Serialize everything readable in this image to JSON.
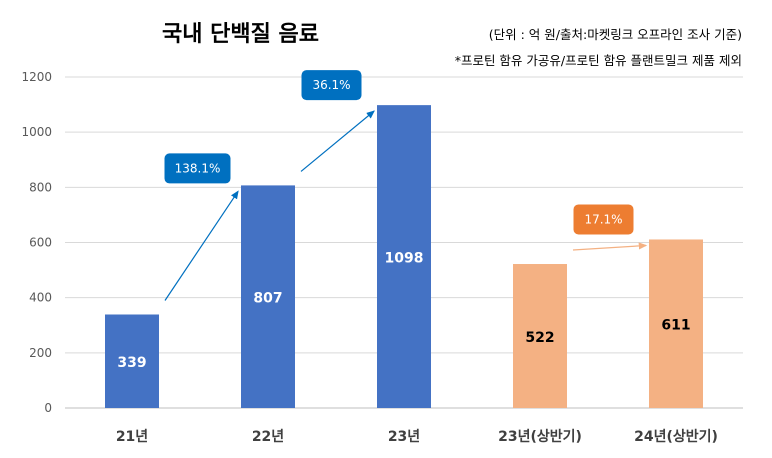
{
  "chart_data": {
    "type": "bar",
    "title": "국내 단백질 음료",
    "notes": [
      "(단위 : 억 원/출처:마켓링크 오프라인 조사 기준)",
      "*프로틴 함유 가공유/프로틴 함유 플랜트밀크 제품 제외"
    ],
    "categories": [
      "21년",
      "22년",
      "23년",
      "23년(상반기)",
      "24년(상반기)"
    ],
    "values": [
      339,
      807,
      1098,
      522,
      611
    ],
    "bar_colors": [
      "#4472C4",
      "#4472C4",
      "#4472C4",
      "#F4B183",
      "#F4B183"
    ],
    "label_colors": [
      "#ffffff",
      "#ffffff",
      "#ffffff",
      "#000000",
      "#000000"
    ],
    "ylim": [
      0,
      1200
    ],
    "yticks": [
      0,
      200,
      400,
      600,
      800,
      1000,
      1200
    ],
    "grid": true,
    "growth_annotations": [
      {
        "from": "21년",
        "to": "22년",
        "label": "138.1%",
        "color": "#0070C0"
      },
      {
        "from": "22년",
        "to": "23년",
        "label": "36.1%",
        "color": "#0070C0"
      },
      {
        "from": "23년(상반기)",
        "to": "24년(상반기)",
        "label": "17.1%",
        "color": "#ED7D31",
        "arrow_color": "#F4B183"
      }
    ]
  }
}
